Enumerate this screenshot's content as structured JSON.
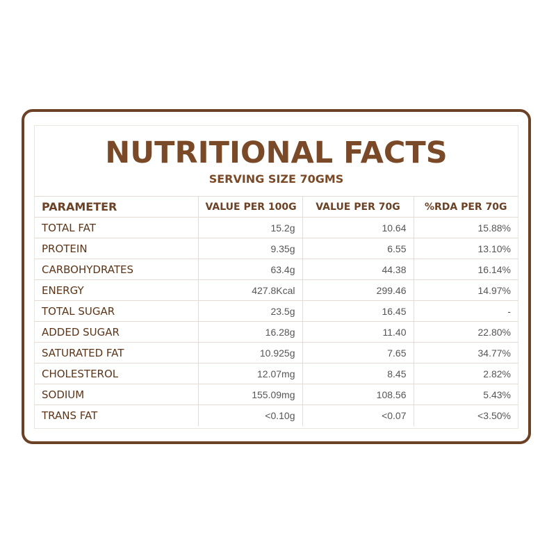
{
  "title": "NUTRITIONAL FACTS",
  "subtitle": "SERVING SIZE 70GMS",
  "table": {
    "headers": [
      "PARAMETER",
      "VALUE PER 100G",
      "VALUE PER 70G",
      "%RDA PER 70G"
    ],
    "rows": [
      {
        "name": "TOTAL FAT",
        "per100": "15.2g",
        "per70": "10.64",
        "rda": "15.88%"
      },
      {
        "name": "PROTEIN",
        "per100": "9.35g",
        "per70": "6.55",
        "rda": "13.10%"
      },
      {
        "name": "CARBOHYDRATES",
        "per100": "63.4g",
        "per70": "44.38",
        "rda": "16.14%"
      },
      {
        "name": "ENERGY",
        "per100": "427.8Kcal",
        "per70": "299.46",
        "rda": "14.97%"
      },
      {
        "name": "TOTAL SUGAR",
        "per100": "23.5g",
        "per70": "16.45",
        "rda": "-"
      },
      {
        "name": "ADDED SUGAR",
        "per100": "16.28g",
        "per70": "11.40",
        "rda": "22.80%"
      },
      {
        "name": "SATURATED FAT",
        "per100": "10.925g",
        "per70": "7.65",
        "rda": "34.77%"
      },
      {
        "name": "CHOLESTEROL",
        "per100": "12.07mg",
        "per70": "8.45",
        "rda": "2.82%"
      },
      {
        "name": "SODIUM",
        "per100": "155.09mg",
        "per70": "108.56",
        "rda": "5.43%"
      },
      {
        "name": "TRANS FAT",
        "per100": "<0.10g",
        "per70": "<0.07",
        "rda": "<3.50%"
      }
    ]
  },
  "colors": {
    "brand_brown": "#6b4226",
    "title_brown": "#7a4a28",
    "value_gray": "#555555"
  }
}
